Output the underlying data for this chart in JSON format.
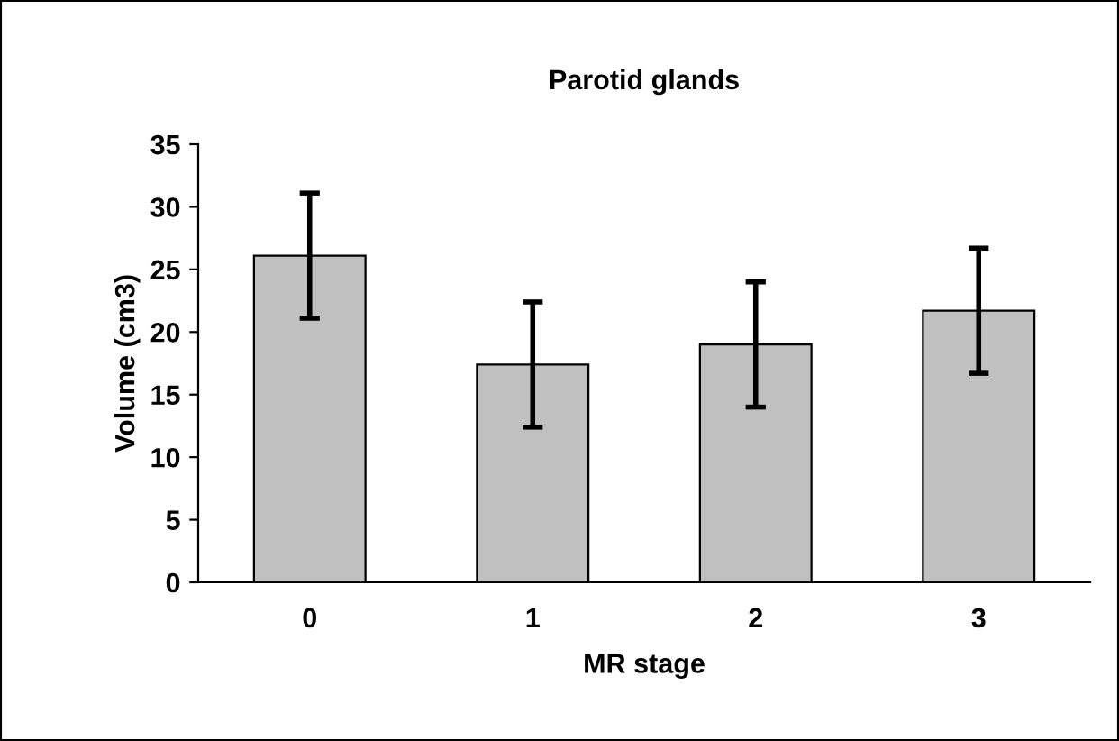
{
  "chart_data": {
    "type": "bar",
    "title": "Parotid glands",
    "xlabel": "MR stage",
    "ylabel": "Volume (cm3)",
    "categories": [
      "0",
      "1",
      "2",
      "3"
    ],
    "values": [
      26.1,
      17.4,
      19.0,
      21.7
    ],
    "errors": [
      5,
      5,
      5,
      5
    ],
    "color": "#c0c0c0",
    "ylim": [
      0,
      35
    ],
    "yticks": [
      0,
      5,
      10,
      15,
      20,
      25,
      30,
      35
    ],
    "grid": false
  }
}
